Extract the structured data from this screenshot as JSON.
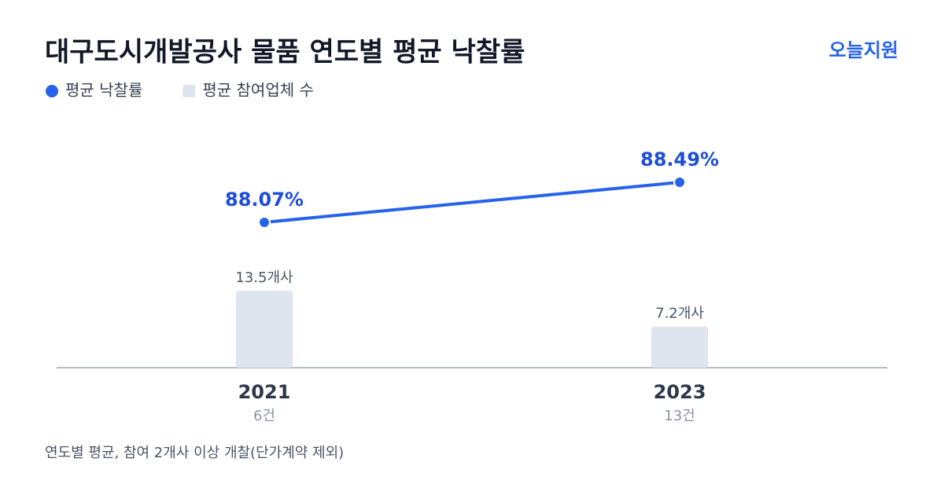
{
  "brand": "오늘지원",
  "footnote": "연도별 평균, 참여 2개사 이상 개찰(단가계약 제외)",
  "chart_data": {
    "type": "bar",
    "title": "대구도시개발공사 물품 연도별 평균 낙찰률",
    "categories": [
      "2021",
      "2023"
    ],
    "category_sublabels": [
      "6건",
      "13건"
    ],
    "legend": "top-left",
    "series": [
      {
        "name": "평균 낙찰률",
        "type": "line",
        "color": "#2563eb",
        "values": [
          88.07,
          88.49
        ],
        "value_labels": [
          "88.07%",
          "88.49%"
        ]
      },
      {
        "name": "평균 참여업체 수",
        "type": "bar",
        "color": "#dfe5ee",
        "values": [
          13.5,
          7.2
        ],
        "value_labels": [
          "13.5개사",
          "7.2개사"
        ]
      }
    ]
  }
}
